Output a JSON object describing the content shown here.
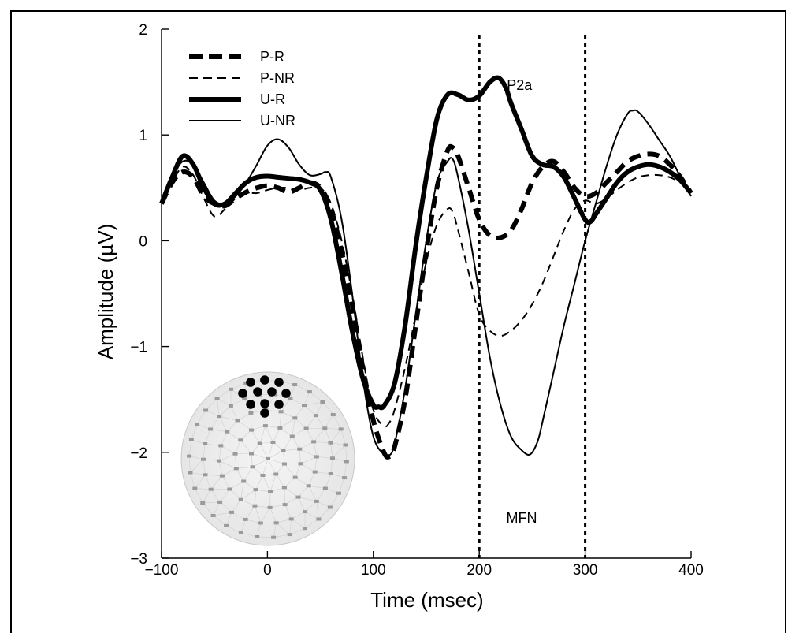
{
  "chart_data": {
    "type": "line",
    "xlabel": "Time (msec)",
    "ylabel": "Amplitude (µV)",
    "xlim": [
      -100,
      400
    ],
    "ylim": [
      -3,
      2
    ],
    "xticks": [
      -100,
      0,
      100,
      200,
      300,
      400
    ],
    "xtick_labels": [
      "−100",
      "0",
      "100",
      "200",
      "300",
      "400"
    ],
    "yticks": [
      -3,
      -2,
      -1,
      0,
      1,
      2
    ],
    "ytick_labels": [
      "−3",
      "−2",
      "−1",
      "0",
      "1",
      "2"
    ],
    "legend_position": "top-left",
    "markers": [
      200,
      300
    ],
    "annotations": [
      {
        "text": "P2a",
        "x": 238,
        "y": 1.47
      },
      {
        "text": "MFN",
        "x": 240,
        "y": -2.62
      }
    ],
    "series": [
      {
        "name": "P-R",
        "style": "thick-dashed",
        "points": [
          [
            -100,
            0.35
          ],
          [
            -90,
            0.55
          ],
          [
            -80,
            0.65
          ],
          [
            -70,
            0.6
          ],
          [
            -60,
            0.42
          ],
          [
            -50,
            0.35
          ],
          [
            -40,
            0.33
          ],
          [
            -30,
            0.4
          ],
          [
            -20,
            0.46
          ],
          [
            -10,
            0.5
          ],
          [
            0,
            0.52
          ],
          [
            10,
            0.5
          ],
          [
            20,
            0.46
          ],
          [
            30,
            0.5
          ],
          [
            40,
            0.55
          ],
          [
            50,
            0.5
          ],
          [
            60,
            0.3
          ],
          [
            70,
            -0.1
          ],
          [
            80,
            -0.6
          ],
          [
            90,
            -1.2
          ],
          [
            100,
            -1.7
          ],
          [
            110,
            -2.0
          ],
          [
            115,
            -2.04
          ],
          [
            120,
            -1.95
          ],
          [
            130,
            -1.5
          ],
          [
            140,
            -0.8
          ],
          [
            150,
            -0.1
          ],
          [
            160,
            0.5
          ],
          [
            170,
            0.85
          ],
          [
            175,
            0.88
          ],
          [
            180,
            0.8
          ],
          [
            190,
            0.5
          ],
          [
            200,
            0.2
          ],
          [
            210,
            0.05
          ],
          [
            220,
            0.03
          ],
          [
            230,
            0.1
          ],
          [
            240,
            0.3
          ],
          [
            250,
            0.55
          ],
          [
            260,
            0.7
          ],
          [
            270,
            0.75
          ],
          [
            280,
            0.65
          ],
          [
            290,
            0.5
          ],
          [
            300,
            0.42
          ],
          [
            310,
            0.45
          ],
          [
            320,
            0.55
          ],
          [
            330,
            0.65
          ],
          [
            340,
            0.75
          ],
          [
            350,
            0.8
          ],
          [
            360,
            0.82
          ],
          [
            370,
            0.8
          ],
          [
            380,
            0.72
          ],
          [
            390,
            0.6
          ],
          [
            400,
            0.45
          ]
        ]
      },
      {
        "name": "P-NR",
        "style": "thin-dashed",
        "points": [
          [
            -100,
            0.38
          ],
          [
            -90,
            0.55
          ],
          [
            -80,
            0.7
          ],
          [
            -70,
            0.62
          ],
          [
            -60,
            0.4
          ],
          [
            -50,
            0.23
          ],
          [
            -40,
            0.3
          ],
          [
            -30,
            0.4
          ],
          [
            -20,
            0.45
          ],
          [
            -10,
            0.45
          ],
          [
            0,
            0.48
          ],
          [
            10,
            0.5
          ],
          [
            20,
            0.5
          ],
          [
            30,
            0.48
          ],
          [
            40,
            0.5
          ],
          [
            50,
            0.5
          ],
          [
            60,
            0.35
          ],
          [
            70,
            0.0
          ],
          [
            80,
            -0.5
          ],
          [
            90,
            -1.1
          ],
          [
            100,
            -1.6
          ],
          [
            110,
            -1.75
          ],
          [
            115,
            -1.72
          ],
          [
            120,
            -1.6
          ],
          [
            130,
            -1.2
          ],
          [
            140,
            -0.7
          ],
          [
            150,
            -0.2
          ],
          [
            160,
            0.15
          ],
          [
            170,
            0.3
          ],
          [
            175,
            0.27
          ],
          [
            180,
            0.1
          ],
          [
            190,
            -0.3
          ],
          [
            200,
            -0.7
          ],
          [
            210,
            -0.85
          ],
          [
            220,
            -0.9
          ],
          [
            230,
            -0.85
          ],
          [
            240,
            -0.75
          ],
          [
            250,
            -0.6
          ],
          [
            260,
            -0.4
          ],
          [
            270,
            -0.15
          ],
          [
            280,
            0.1
          ],
          [
            290,
            0.3
          ],
          [
            300,
            0.38
          ],
          [
            310,
            0.35
          ],
          [
            320,
            0.4
          ],
          [
            330,
            0.48
          ],
          [
            340,
            0.55
          ],
          [
            350,
            0.6
          ],
          [
            360,
            0.62
          ],
          [
            370,
            0.62
          ],
          [
            380,
            0.6
          ],
          [
            390,
            0.55
          ],
          [
            400,
            0.5
          ]
        ]
      },
      {
        "name": "U-R",
        "style": "thick-solid",
        "points": [
          [
            -100,
            0.35
          ],
          [
            -90,
            0.6
          ],
          [
            -80,
            0.8
          ],
          [
            -70,
            0.72
          ],
          [
            -60,
            0.5
          ],
          [
            -50,
            0.35
          ],
          [
            -40,
            0.35
          ],
          [
            -30,
            0.45
          ],
          [
            -20,
            0.55
          ],
          [
            -10,
            0.6
          ],
          [
            0,
            0.61
          ],
          [
            10,
            0.6
          ],
          [
            20,
            0.59
          ],
          [
            30,
            0.58
          ],
          [
            40,
            0.55
          ],
          [
            50,
            0.48
          ],
          [
            60,
            0.2
          ],
          [
            70,
            -0.3
          ],
          [
            80,
            -0.85
          ],
          [
            90,
            -1.3
          ],
          [
            100,
            -1.55
          ],
          [
            105,
            -1.57
          ],
          [
            110,
            -1.56
          ],
          [
            120,
            -1.35
          ],
          [
            130,
            -0.8
          ],
          [
            140,
            -0.05
          ],
          [
            150,
            0.6
          ],
          [
            160,
            1.15
          ],
          [
            170,
            1.38
          ],
          [
            180,
            1.38
          ],
          [
            190,
            1.33
          ],
          [
            200,
            1.37
          ],
          [
            210,
            1.5
          ],
          [
            218,
            1.54
          ],
          [
            225,
            1.45
          ],
          [
            230,
            1.3
          ],
          [
            240,
            1.05
          ],
          [
            250,
            0.8
          ],
          [
            260,
            0.72
          ],
          [
            270,
            0.7
          ],
          [
            280,
            0.6
          ],
          [
            290,
            0.4
          ],
          [
            300,
            0.2
          ],
          [
            305,
            0.18
          ],
          [
            310,
            0.25
          ],
          [
            320,
            0.4
          ],
          [
            330,
            0.55
          ],
          [
            340,
            0.65
          ],
          [
            350,
            0.7
          ],
          [
            360,
            0.72
          ],
          [
            370,
            0.7
          ],
          [
            380,
            0.65
          ],
          [
            390,
            0.57
          ],
          [
            400,
            0.45
          ]
        ]
      },
      {
        "name": "U-NR",
        "style": "thin-solid",
        "points": [
          [
            -100,
            0.38
          ],
          [
            -90,
            0.6
          ],
          [
            -80,
            0.75
          ],
          [
            -70,
            0.72
          ],
          [
            -60,
            0.55
          ],
          [
            -50,
            0.38
          ],
          [
            -40,
            0.35
          ],
          [
            -30,
            0.42
          ],
          [
            -20,
            0.55
          ],
          [
            -10,
            0.72
          ],
          [
            0,
            0.9
          ],
          [
            10,
            0.96
          ],
          [
            20,
            0.88
          ],
          [
            30,
            0.72
          ],
          [
            40,
            0.62
          ],
          [
            50,
            0.63
          ],
          [
            55,
            0.65
          ],
          [
            60,
            0.6
          ],
          [
            70,
            0.2
          ],
          [
            80,
            -0.5
          ],
          [
            90,
            -1.3
          ],
          [
            100,
            -1.85
          ],
          [
            110,
            -2.02
          ],
          [
            115,
            -2.03
          ],
          [
            120,
            -1.92
          ],
          [
            130,
            -1.4
          ],
          [
            140,
            -0.7
          ],
          [
            150,
            0.0
          ],
          [
            160,
            0.55
          ],
          [
            170,
            0.75
          ],
          [
            175,
            0.77
          ],
          [
            180,
            0.6
          ],
          [
            190,
            0.1
          ],
          [
            200,
            -0.5
          ],
          [
            210,
            -1.1
          ],
          [
            220,
            -1.55
          ],
          [
            230,
            -1.85
          ],
          [
            240,
            -1.98
          ],
          [
            248,
            -2.02
          ],
          [
            255,
            -1.9
          ],
          [
            260,
            -1.7
          ],
          [
            270,
            -1.25
          ],
          [
            280,
            -0.8
          ],
          [
            290,
            -0.4
          ],
          [
            300,
            0.0
          ],
          [
            310,
            0.35
          ],
          [
            320,
            0.7
          ],
          [
            330,
            1.0
          ],
          [
            340,
            1.2
          ],
          [
            345,
            1.23
          ],
          [
            350,
            1.22
          ],
          [
            360,
            1.1
          ],
          [
            370,
            0.95
          ],
          [
            380,
            0.8
          ],
          [
            390,
            0.6
          ],
          [
            400,
            0.42
          ]
        ]
      }
    ]
  }
}
